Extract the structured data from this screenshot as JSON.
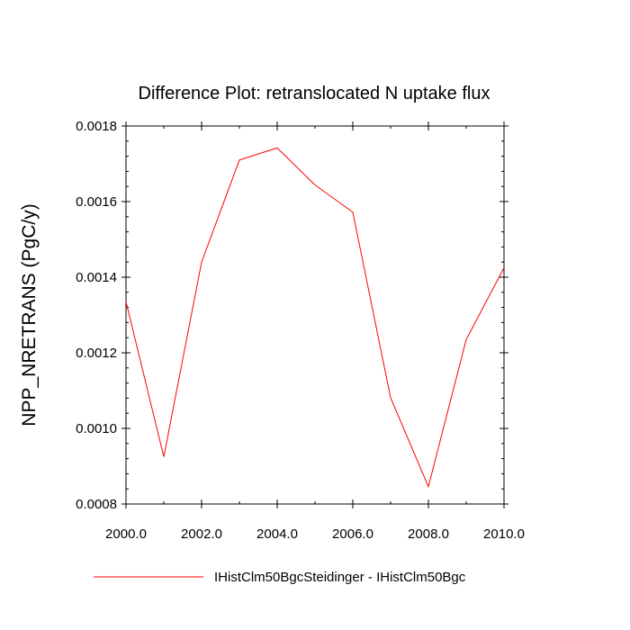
{
  "chart_data": {
    "type": "line",
    "title": "Difference Plot: retranslocated N uptake flux",
    "xlabel": "",
    "ylabel": "NPP_NRETRANS  (PgC/y)",
    "xlim": [
      2000,
      2010
    ],
    "ylim": [
      0.0008,
      0.0018
    ],
    "x_ticks": [
      "2000.0",
      "2002.0",
      "2004.0",
      "2006.0",
      "2008.0",
      "2010.0"
    ],
    "y_ticks": [
      "0.0008",
      "0.0010",
      "0.0012",
      "0.0014",
      "0.0016",
      "0.0018"
    ],
    "x": [
      2000,
      2001,
      2002,
      2003,
      2004,
      2005,
      2006,
      2007,
      2008,
      2009,
      2010
    ],
    "series": [
      {
        "name": "IHistClm50BgcSteidinger - IHistClm50Bgc",
        "color": "#ff0000",
        "values": [
          0.001335,
          0.000925,
          0.00144,
          0.00171,
          0.001742,
          0.001644,
          0.001572,
          0.001081,
          0.000846,
          0.001235,
          0.001425
        ]
      }
    ],
    "grid": false,
    "legend_position": "bottom"
  }
}
